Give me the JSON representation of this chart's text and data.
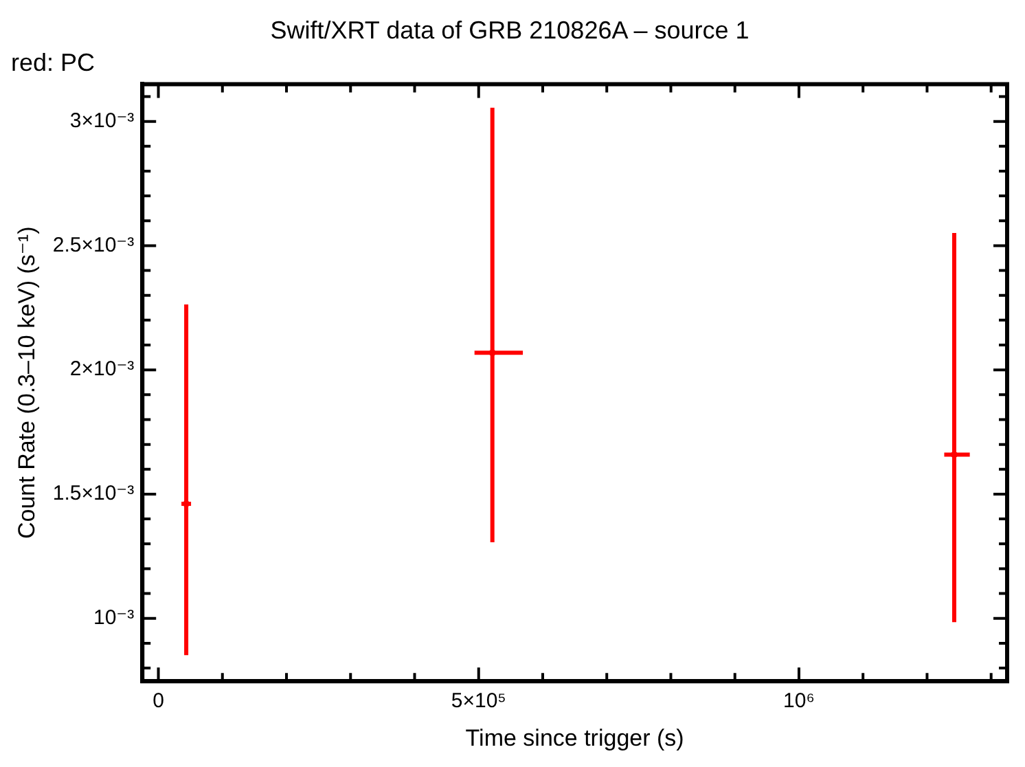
{
  "chart_data": {
    "type": "scatter",
    "title": "Swift/XRT data of GRB 210826A – source 1",
    "subtitle": "red: PC",
    "xlabel": "Time since trigger (s)",
    "ylabel": "Count Rate (0.3–10 keV) (s⁻¹)",
    "series": [
      {
        "color": "#ff0000",
        "x": [
          43500,
          521400,
          1242400
        ],
        "values": [
          0.001461,
          0.002069,
          0.001659
        ],
        "errors": [
          [
            0.000852,
            0.002263
          ],
          [
            0.001306,
            0.003055
          ],
          [
            0.000985,
            0.002551
          ]
        ],
        "xerrors": [
          [
            36000,
            51000
          ],
          [
            493500,
            569000
          ],
          [
            1226800,
            1266700
          ]
        ]
      }
    ],
    "grid": false,
    "legend": false,
    "xlim": [
      -25000,
      1325000
    ],
    "xticks": [
      0,
      {
        "value": 100000,
        "label": null
      },
      {
        "value": 200000,
        "label": null
      },
      {
        "value": 300000,
        "label": null
      },
      {
        "value": 400000,
        "label": null
      },
      {
        "value": 500000,
        "label": "5×10⁵"
      },
      {
        "value": 600000,
        "label": null
      },
      {
        "value": 700000,
        "label": null
      },
      {
        "value": 800000,
        "label": null
      },
      {
        "value": 900000,
        "label": null
      },
      {
        "value": 1000000,
        "label": "10⁶"
      },
      {
        "value": 1100000,
        "label": null
      },
      {
        "value": 1200000,
        "label": null
      },
      {
        "value": 1300000,
        "label": null
      }
    ],
    "ylim": [
      0.000747,
      0.00315
    ],
    "yticks": [
      {
        "value": 0.0008,
        "label": null
      },
      {
        "value": 0.0009,
        "label": null
      },
      {
        "value": 0.001,
        "label": "10⁻³"
      },
      {
        "value": 0.0011,
        "label": null
      },
      {
        "value": 0.0012,
        "label": null
      },
      {
        "value": 0.0013,
        "label": null
      },
      {
        "value": 0.0014,
        "label": null
      },
      {
        "value": 0.0015,
        "label": "1.5×10⁻³"
      },
      {
        "value": 0.0016,
        "label": null
      },
      {
        "value": 0.0017,
        "label": null
      },
      {
        "value": 0.0018,
        "label": null
      },
      {
        "value": 0.0019,
        "label": null
      },
      {
        "value": 0.002,
        "label": "2×10⁻³"
      },
      {
        "value": 0.0021,
        "label": null
      },
      {
        "value": 0.0022,
        "label": null
      },
      {
        "value": 0.0023,
        "label": null
      },
      {
        "value": 0.0024,
        "label": null
      },
      {
        "value": 0.0025,
        "label": "2.5×10⁻³"
      },
      {
        "value": 0.0026,
        "label": null
      },
      {
        "value": 0.0027,
        "label": null
      },
      {
        "value": 0.0028,
        "label": null
      },
      {
        "value": 0.0029,
        "label": null
      },
      {
        "value": 0.003,
        "label": "3×10⁻³"
      },
      {
        "value": 0.0031,
        "label": null
      }
    ]
  }
}
